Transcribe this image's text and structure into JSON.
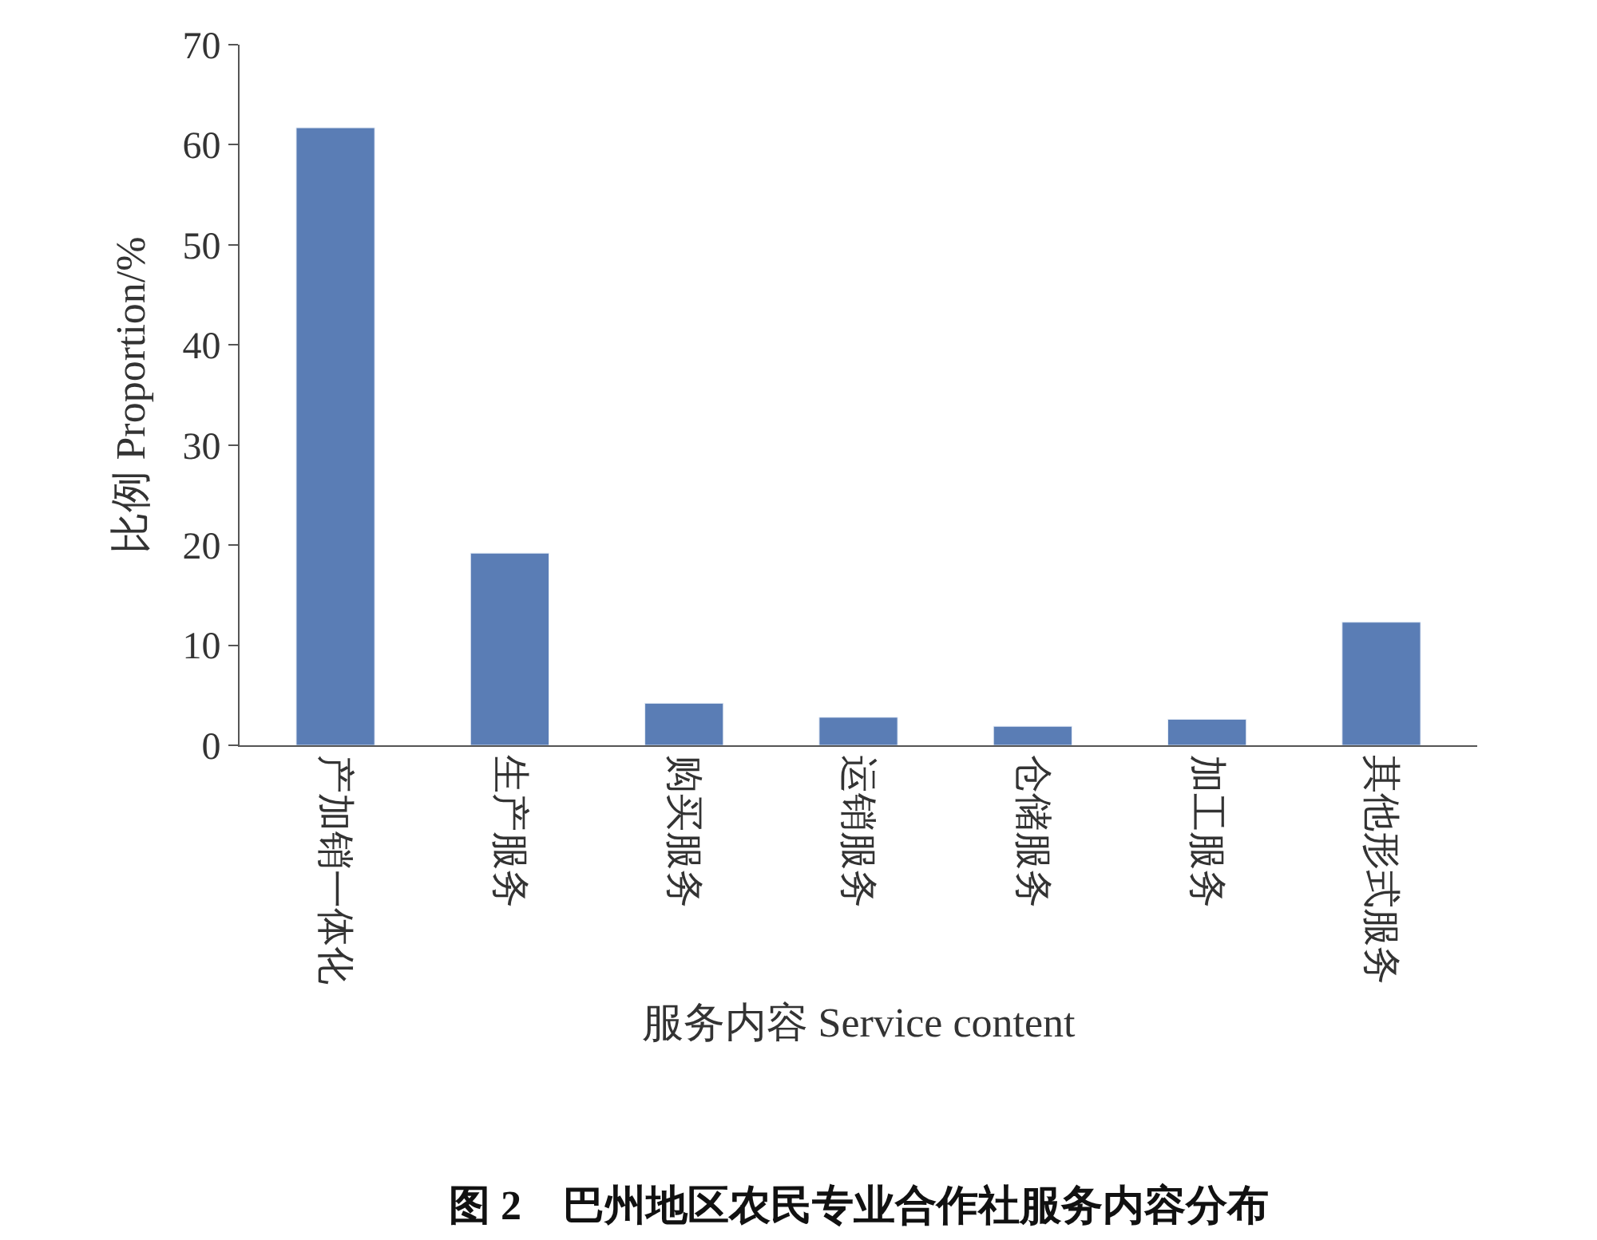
{
  "chart_data": {
    "type": "bar",
    "title": "图 2　巴州地区农民专业合作社服务内容分布",
    "xlabel": "服务内容 Service content",
    "ylabel": "比例 Proportion/%",
    "categories": [
      "产加销一体化",
      "生产服务",
      "购买服务",
      "运销服务",
      "仓储服务",
      "加工服务",
      "其他形式服务"
    ],
    "values": [
      61.7,
      19.2,
      4.2,
      2.8,
      1.9,
      2.6,
      12.3
    ],
    "color": "#5a7db5",
    "ylim": [
      0,
      70
    ],
    "yticks": [
      0,
      10,
      20,
      30,
      40,
      50,
      60,
      70
    ]
  }
}
